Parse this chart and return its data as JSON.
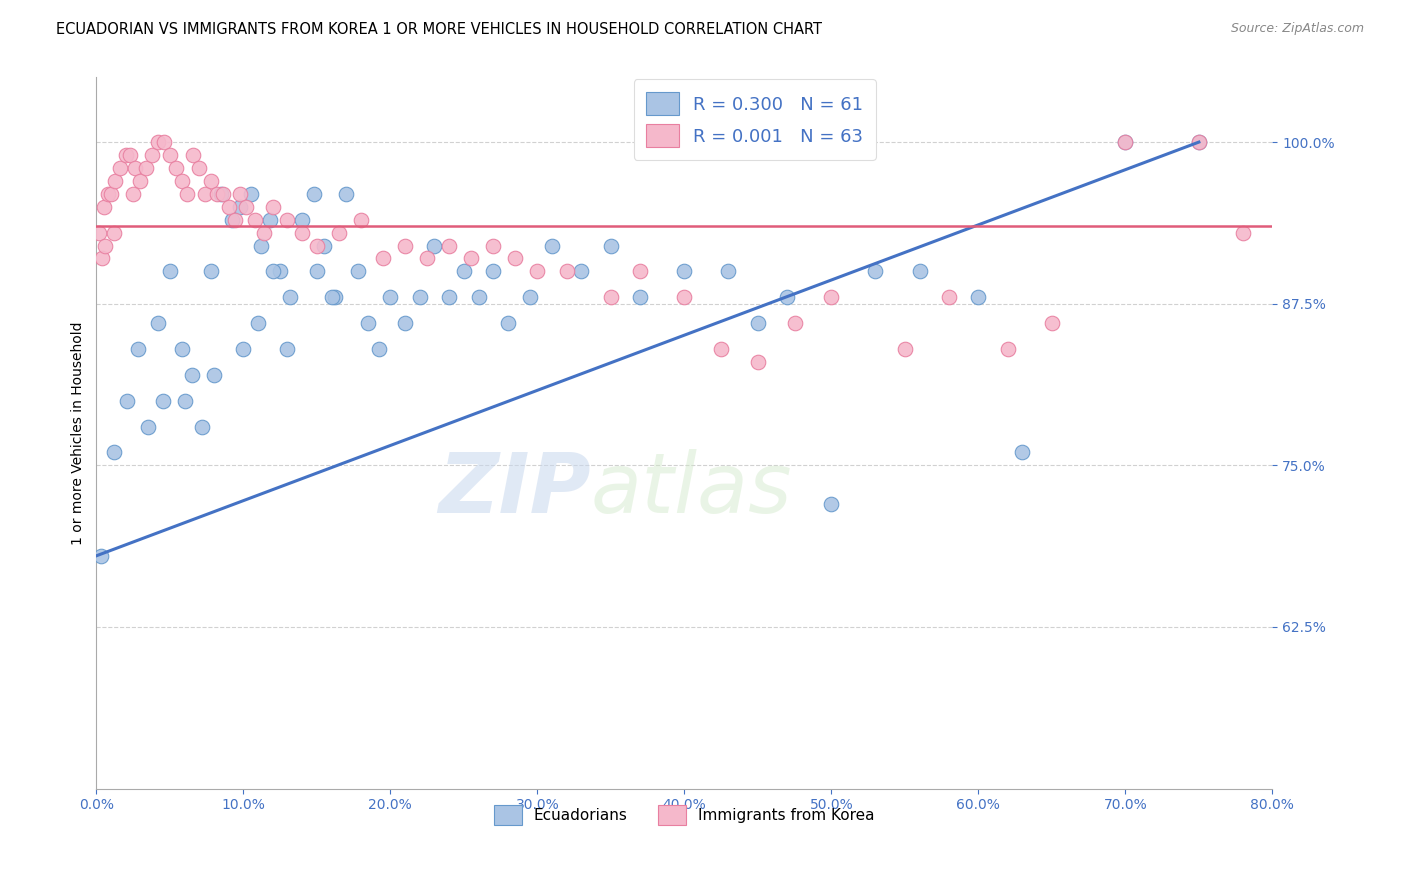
{
  "title": "ECUADORIAN VS IMMIGRANTS FROM KOREA 1 OR MORE VEHICLES IN HOUSEHOLD CORRELATION CHART",
  "source": "Source: ZipAtlas.com",
  "ylabel": "1 or more Vehicles in Household",
  "legend_blue_label": "Ecuadorians",
  "legend_pink_label": "Immigrants from Korea",
  "watermark_zip": "ZIP",
  "watermark_atlas": "atlas",
  "xlim": [
    0.0,
    80.0
  ],
  "ylim": [
    50.0,
    105.0
  ],
  "xticks": [
    0.0,
    10.0,
    20.0,
    30.0,
    40.0,
    50.0,
    60.0,
    70.0,
    80.0
  ],
  "yticks": [
    62.5,
    75.0,
    87.5,
    100.0
  ],
  "blue_scatter_x": [
    0.3,
    1.2,
    2.1,
    2.8,
    3.5,
    4.2,
    5.0,
    5.8,
    6.5,
    7.2,
    7.8,
    8.5,
    9.2,
    9.8,
    10.5,
    11.2,
    11.8,
    12.5,
    13.2,
    14.0,
    14.8,
    15.5,
    16.2,
    17.0,
    17.8,
    18.5,
    19.2,
    20.0,
    21.0,
    22.0,
    23.0,
    24.0,
    25.0,
    26.0,
    27.0,
    28.0,
    29.5,
    31.0,
    33.0,
    35.0,
    37.0,
    40.0,
    43.0,
    45.0,
    47.0,
    50.0,
    53.0,
    56.0,
    60.0,
    63.0,
    70.0,
    75.0,
    10.0,
    11.0,
    12.0,
    13.0,
    15.0,
    16.0,
    4.5,
    6.0,
    8.0
  ],
  "blue_scatter_y": [
    68.0,
    76.0,
    80.0,
    84.0,
    78.0,
    86.0,
    90.0,
    84.0,
    82.0,
    78.0,
    90.0,
    96.0,
    94.0,
    95.0,
    96.0,
    92.0,
    94.0,
    90.0,
    88.0,
    94.0,
    96.0,
    92.0,
    88.0,
    96.0,
    90.0,
    86.0,
    84.0,
    88.0,
    86.0,
    88.0,
    92.0,
    88.0,
    90.0,
    88.0,
    90.0,
    86.0,
    88.0,
    92.0,
    90.0,
    92.0,
    88.0,
    90.0,
    90.0,
    86.0,
    88.0,
    72.0,
    90.0,
    90.0,
    88.0,
    76.0,
    100.0,
    100.0,
    84.0,
    86.0,
    90.0,
    84.0,
    90.0,
    88.0,
    80.0,
    80.0,
    82.0
  ],
  "pink_scatter_x": [
    0.2,
    0.5,
    0.8,
    1.0,
    1.3,
    1.6,
    2.0,
    2.3,
    2.6,
    3.0,
    3.4,
    3.8,
    4.2,
    4.6,
    5.0,
    5.4,
    5.8,
    6.2,
    6.6,
    7.0,
    7.4,
    7.8,
    8.2,
    8.6,
    9.0,
    9.4,
    9.8,
    10.2,
    10.8,
    11.4,
    12.0,
    13.0,
    14.0,
    15.0,
    16.5,
    18.0,
    19.5,
    21.0,
    22.5,
    24.0,
    25.5,
    27.0,
    28.5,
    30.0,
    32.0,
    35.0,
    37.0,
    40.0,
    42.5,
    45.0,
    47.5,
    50.0,
    55.0,
    58.0,
    62.0,
    65.0,
    70.0,
    75.0,
    78.0,
    0.4,
    0.6,
    1.2,
    2.5
  ],
  "pink_scatter_y": [
    93.0,
    95.0,
    96.0,
    96.0,
    97.0,
    98.0,
    99.0,
    99.0,
    98.0,
    97.0,
    98.0,
    99.0,
    100.0,
    100.0,
    99.0,
    98.0,
    97.0,
    96.0,
    99.0,
    98.0,
    96.0,
    97.0,
    96.0,
    96.0,
    95.0,
    94.0,
    96.0,
    95.0,
    94.0,
    93.0,
    95.0,
    94.0,
    93.0,
    92.0,
    93.0,
    94.0,
    91.0,
    92.0,
    91.0,
    92.0,
    91.0,
    92.0,
    91.0,
    90.0,
    90.0,
    88.0,
    90.0,
    88.0,
    84.0,
    83.0,
    86.0,
    88.0,
    84.0,
    88.0,
    84.0,
    86.0,
    100.0,
    100.0,
    93.0,
    91.0,
    92.0,
    93.0,
    96.0
  ],
  "blue_color": "#aac4e4",
  "pink_color": "#f5b8cb",
  "blue_edge_color": "#6699cc",
  "pink_edge_color": "#e87fa0",
  "blue_line_color": "#4472c4",
  "pink_line_color": "#e05c7a",
  "grid_color": "#cccccc",
  "tick_label_color": "#4472c4",
  "background_color": "#ffffff",
  "blue_trend_x0": 0.0,
  "blue_trend_y0": 68.0,
  "blue_trend_x1": 75.0,
  "blue_trend_y1": 100.0,
  "pink_trend_y": 93.5
}
